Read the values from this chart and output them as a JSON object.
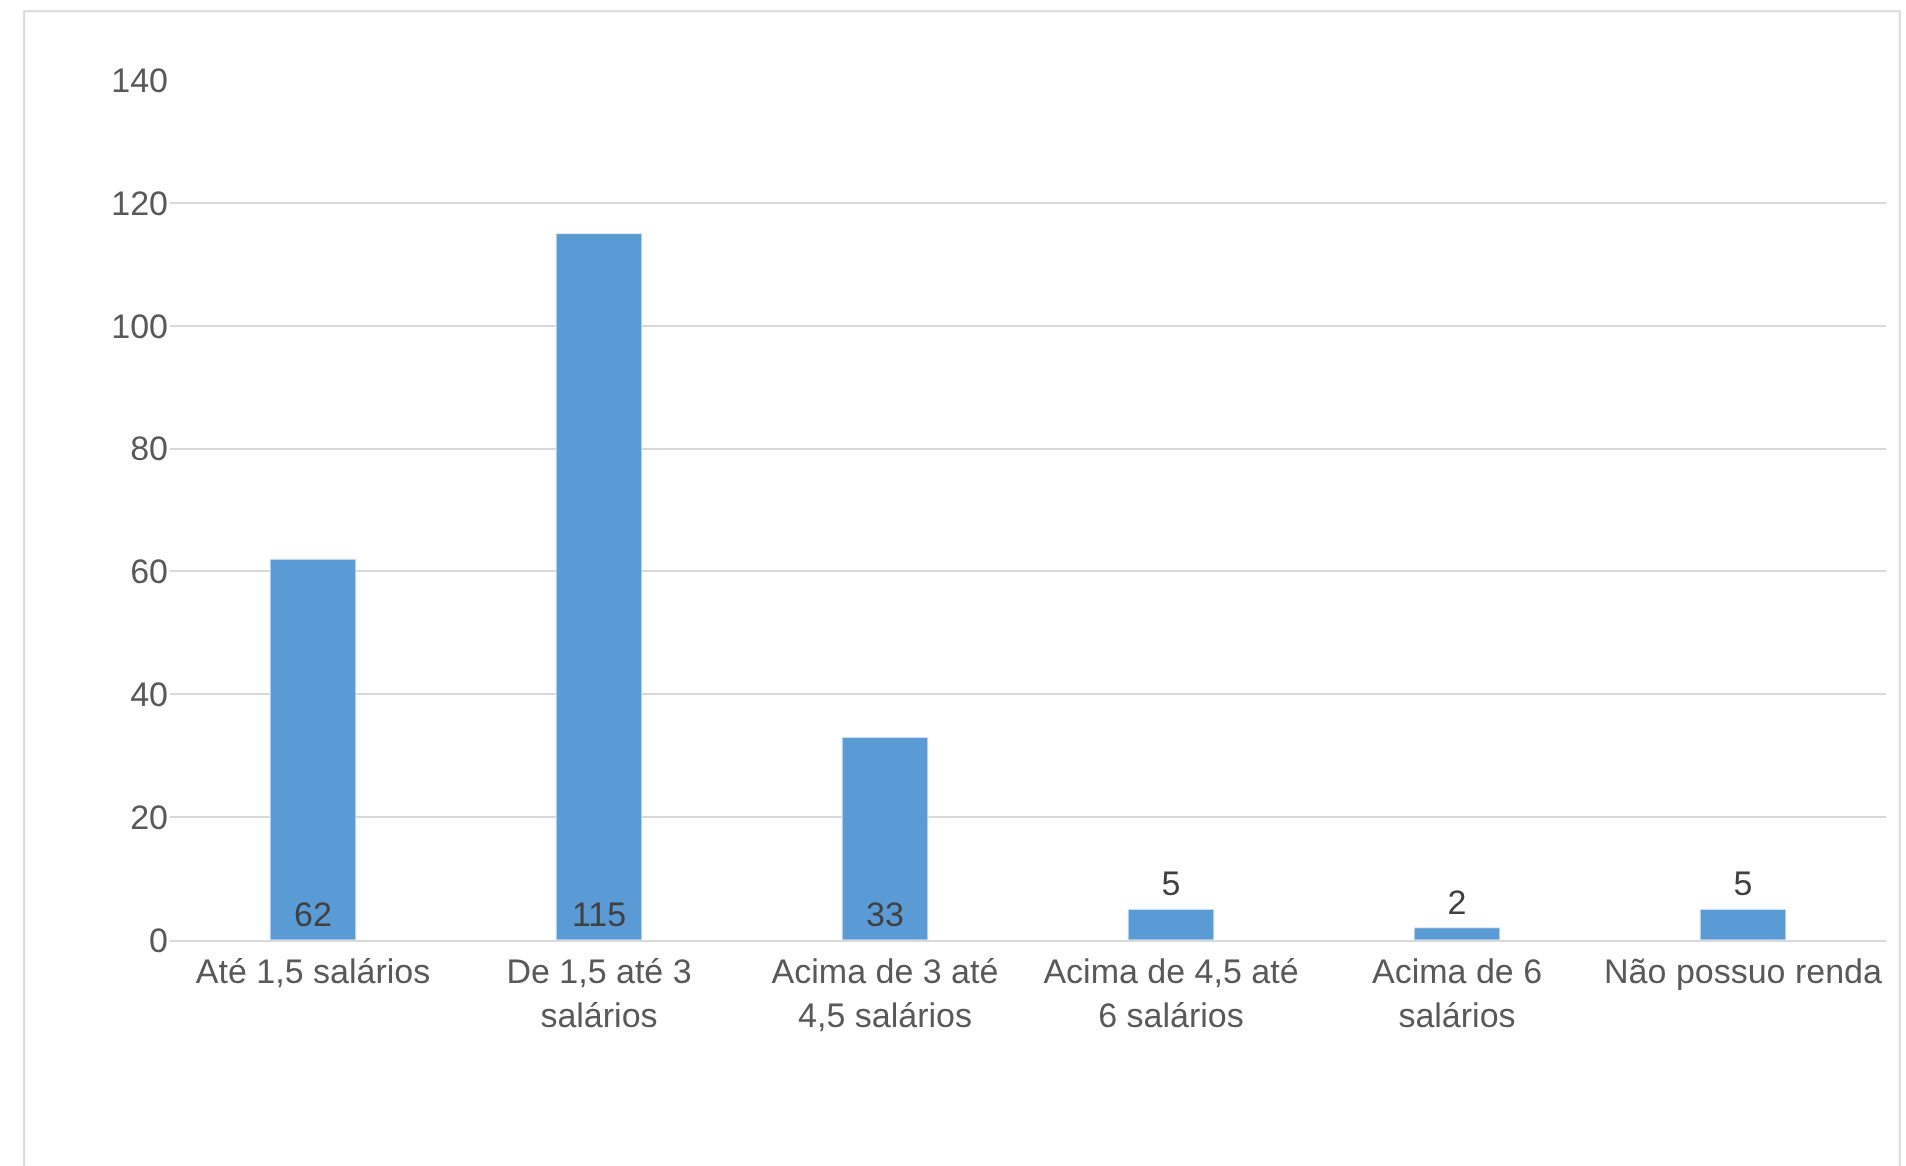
{
  "chart_data": {
    "type": "bar",
    "categories": [
      "Até 1,5 salários",
      "De 1,5 até 3 salários",
      "Acima de 3 até 4,5 salários",
      "Acima de 4,5 até 6 salários",
      "Acima de 6 salários",
      "Não possuo renda"
    ],
    "values": [
      62,
      115,
      33,
      5,
      2,
      5
    ],
    "color": "#5b9bd5",
    "ylim": [
      0,
      140
    ],
    "yticks": [
      0,
      20,
      40,
      60,
      80,
      100,
      120,
      140
    ],
    "grid": "y",
    "legend": false,
    "data_labels": true
  }
}
